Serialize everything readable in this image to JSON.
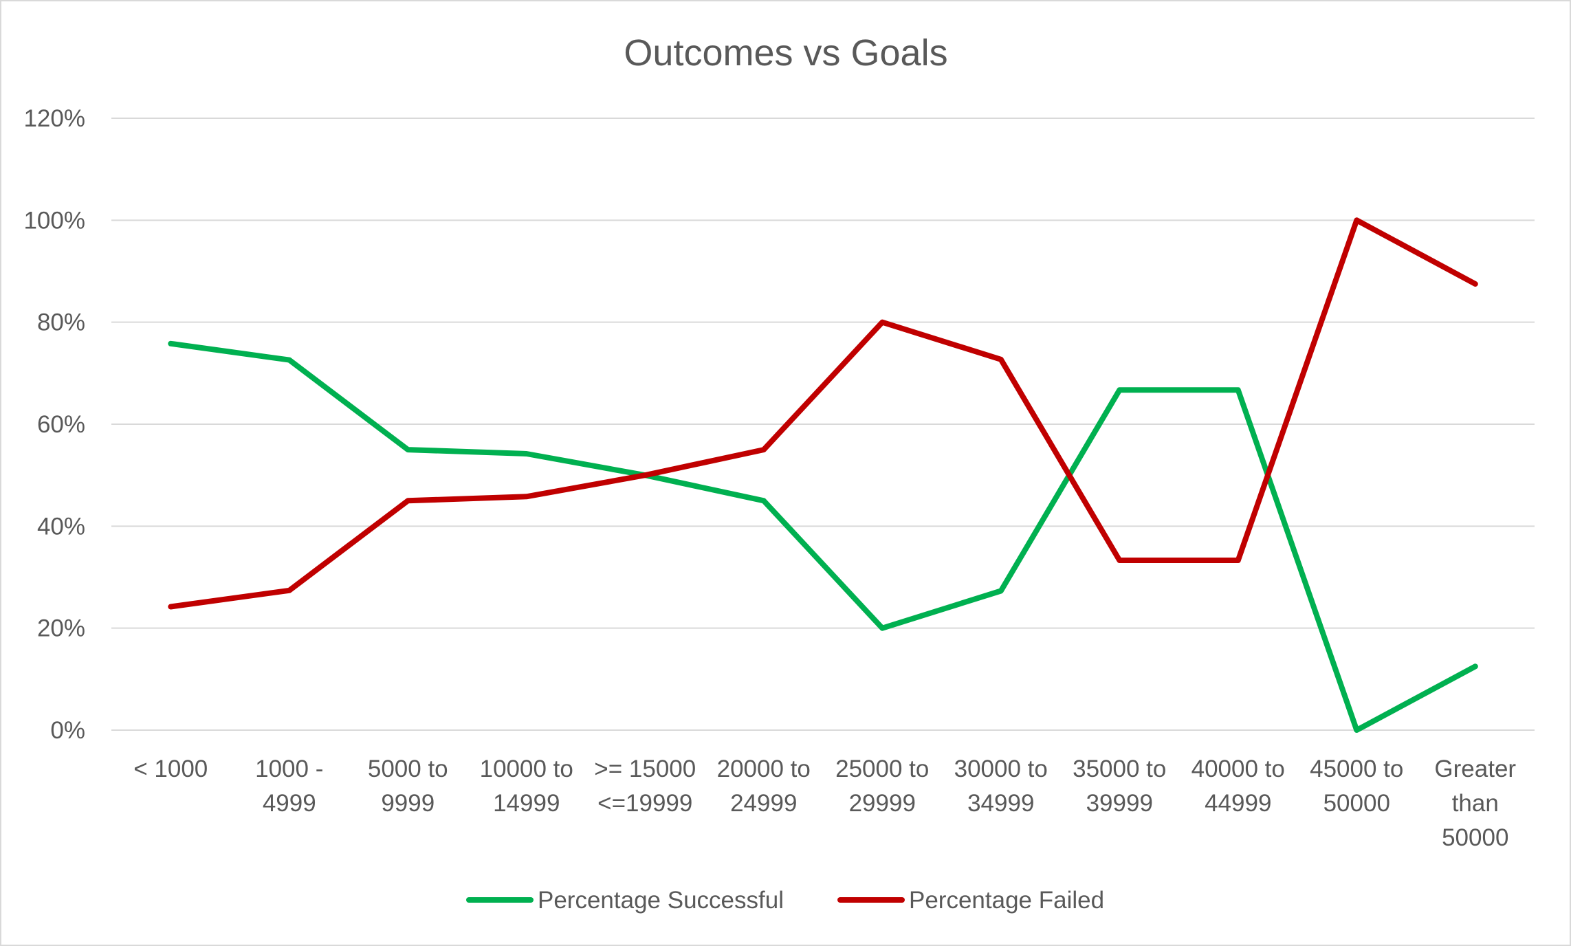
{
  "chart_data": {
    "type": "line",
    "title": "Outcomes vs Goals",
    "xlabel": "",
    "ylabel": "",
    "categories": [
      [
        "< 1000"
      ],
      [
        "1000 -",
        "4999"
      ],
      [
        "5000 to",
        "9999"
      ],
      [
        "10000 to",
        "14999"
      ],
      [
        ">= 15000",
        "<=19999"
      ],
      [
        "20000 to",
        "24999"
      ],
      [
        "25000 to",
        "29999"
      ],
      [
        "30000 to",
        "34999"
      ],
      [
        "35000 to",
        "39999"
      ],
      [
        "40000 to",
        "44999"
      ],
      [
        "45000 to",
        "50000"
      ],
      [
        "Greater",
        "than",
        "50000"
      ]
    ],
    "ylim": [
      0,
      1.2
    ],
    "yticks": [
      0,
      0.2,
      0.4,
      0.6,
      0.8,
      1.0,
      1.2
    ],
    "ytick_labels": [
      "0%",
      "20%",
      "40%",
      "60%",
      "80%",
      "100%",
      "120%"
    ],
    "grid": true,
    "legend_position": "bottom",
    "series": [
      {
        "name": "Percentage Successful",
        "color": "#00b050",
        "values": [
          0.758,
          0.726,
          0.55,
          0.542,
          0.5,
          0.45,
          0.2,
          0.273,
          0.667,
          0.667,
          0.0,
          0.125
        ]
      },
      {
        "name": "Percentage Failed",
        "color": "#c00000",
        "values": [
          0.242,
          0.274,
          0.45,
          0.458,
          0.5,
          0.55,
          0.8,
          0.727,
          0.333,
          0.333,
          1.0,
          0.875
        ]
      }
    ]
  }
}
